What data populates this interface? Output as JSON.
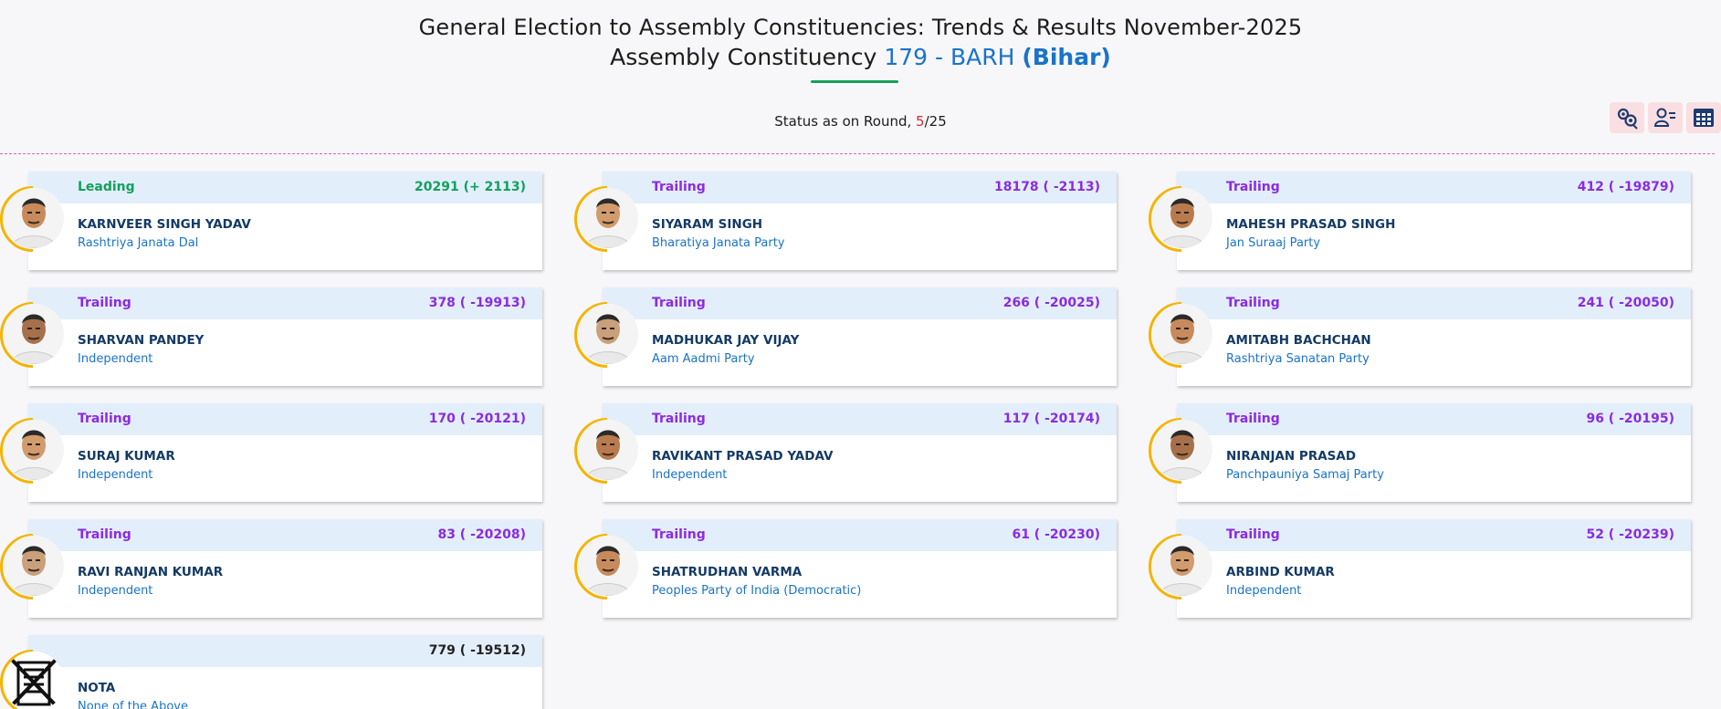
{
  "header": {
    "title_line1": "General Election to Assembly Constituencies: Trends & Results November-2025",
    "title_line2_prefix": "Assembly Constituency",
    "ac_code": "179 - BARH",
    "state": "(Bihar)"
  },
  "status": {
    "label": "Status as on Round, ",
    "round_current": "5",
    "round_total": "/25"
  },
  "tools": [
    {
      "icon": "settings-chart-icon"
    },
    {
      "icon": "user-list-icon"
    },
    {
      "icon": "calculator-grid-icon"
    }
  ],
  "colors": {
    "leading": "#12a05c",
    "trailing": "#8a2be2",
    "name": "#143a66",
    "party": "#1a73c8",
    "ring": "#f5b400"
  },
  "candidates": [
    {
      "status": "Leading",
      "votes": "20291 (+ 2113)",
      "name": "KARNVEER SINGH YADAV",
      "party": "Rashtriya Janata Dal"
    },
    {
      "status": "Trailing",
      "votes": "18178 ( -2113)",
      "name": "SIYARAM SINGH",
      "party": "Bharatiya Janata Party"
    },
    {
      "status": "Trailing",
      "votes": "412 ( -19879)",
      "name": "MAHESH PRASAD SINGH",
      "party": "Jan Suraaj Party"
    },
    {
      "status": "Trailing",
      "votes": "378 ( -19913)",
      "name": "SHARVAN PANDEY",
      "party": "Independent"
    },
    {
      "status": "Trailing",
      "votes": "266 ( -20025)",
      "name": "MADHUKAR JAY VIJAY",
      "party": "Aam Aadmi Party"
    },
    {
      "status": "Trailing",
      "votes": "241 ( -20050)",
      "name": "AMITABH BACHCHAN",
      "party": "Rashtriya Sanatan Party"
    },
    {
      "status": "Trailing",
      "votes": "170 ( -20121)",
      "name": "SURAJ KUMAR",
      "party": "Independent"
    },
    {
      "status": "Trailing",
      "votes": "117 ( -20174)",
      "name": "RAVIKANT PRASAD YADAV",
      "party": "Independent"
    },
    {
      "status": "Trailing",
      "votes": "96 ( -20195)",
      "name": "NIRANJAN PRASAD",
      "party": "Panchpauniya Samaj Party"
    },
    {
      "status": "Trailing",
      "votes": "83 ( -20208)",
      "name": "RAVI RANJAN KUMAR",
      "party": "Independent"
    },
    {
      "status": "Trailing",
      "votes": "61 ( -20230)",
      "name": "SHATRUDHAN VARMA",
      "party": "Peoples Party of India (Democratic)"
    },
    {
      "status": "Trailing",
      "votes": "52 ( -20239)",
      "name": "ARBIND KUMAR",
      "party": "Independent"
    },
    {
      "status": "",
      "votes": "779 ( -19512)",
      "name": "NOTA",
      "party": "None of the Above"
    }
  ]
}
